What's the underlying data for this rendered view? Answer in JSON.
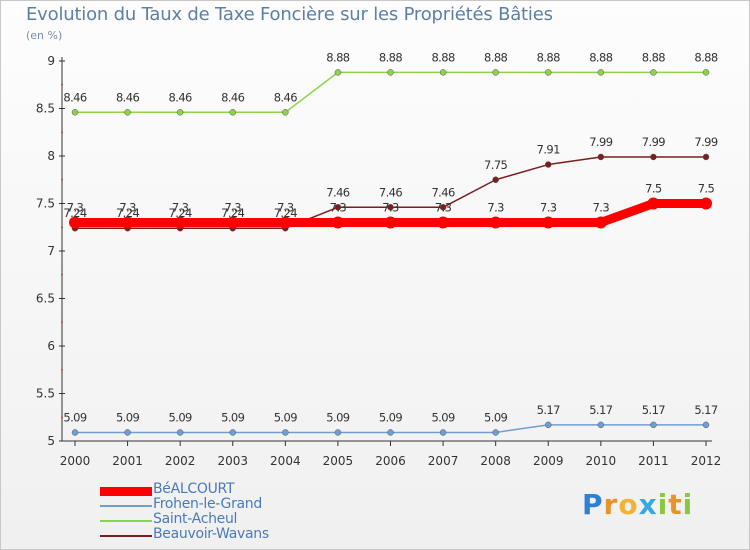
{
  "header": {
    "title": "Evolution du Taux de Taxe Foncière sur les Propriétés Bâties",
    "unit": "(en %)"
  },
  "logo": {
    "letters": [
      "P",
      "r",
      "o",
      "x",
      "i",
      "t",
      "i"
    ],
    "colors": [
      "#2f7fd6",
      "#e8922a",
      "#f2b430",
      "#3aa7e0",
      "#8cc63f",
      "#e8922a",
      "#8cc63f"
    ]
  },
  "chart_data": {
    "type": "line",
    "title": "Evolution du Taux de Taxe Foncière sur les Propriétés Bâties",
    "ylabel": "(en %)",
    "xlabel": "",
    "ylim": [
      5,
      9
    ],
    "grid": false,
    "legend_position": "bottom-left",
    "x": [
      "2000",
      "2001",
      "2002",
      "2003",
      "2004",
      "2005",
      "2006",
      "2007",
      "2008",
      "2009",
      "2010",
      "2011",
      "2012"
    ],
    "y_ticks": [
      "5",
      "5.5",
      "6",
      "6.5",
      "7",
      "7.5",
      "8",
      "8.5",
      "9"
    ],
    "series": [
      {
        "name": "BéALCOURT",
        "color": "#ff0000",
        "emphasis": true,
        "values": [
          7.3,
          7.3,
          7.3,
          7.3,
          7.3,
          7.3,
          7.3,
          7.3,
          7.3,
          7.3,
          7.3,
          7.5,
          7.5
        ],
        "labels": [
          "7.3",
          "7.3",
          "7.3",
          "7.3",
          "7.3",
          "7.3",
          "7.3",
          "7.3",
          "7.3",
          "7.3",
          "7.3",
          "7.5",
          "7.5"
        ]
      },
      {
        "name": "Frohen-le-Grand",
        "color": "#6e9fd1",
        "emphasis": false,
        "values": [
          5.09,
          5.09,
          5.09,
          5.09,
          5.09,
          5.09,
          5.09,
          5.09,
          5.09,
          5.17,
          5.17,
          5.17,
          5.17
        ],
        "labels": [
          "5.09",
          "5.09",
          "5.09",
          "5.09",
          "5.09",
          "5.09",
          "5.09",
          "5.09",
          "5.09",
          "5.17",
          "5.17",
          "5.17",
          "5.17"
        ]
      },
      {
        "name": "Saint-Acheul",
        "color": "#8ed14a",
        "emphasis": false,
        "values": [
          8.46,
          8.46,
          8.46,
          8.46,
          8.46,
          8.88,
          8.88,
          8.88,
          8.88,
          8.88,
          8.88,
          8.88,
          8.88
        ],
        "labels": [
          "8.46",
          "8.46",
          "8.46",
          "8.46",
          "8.46",
          "8.88",
          "8.88",
          "8.88",
          "8.88",
          "8.88",
          "8.88",
          "8.88",
          "8.88"
        ]
      },
      {
        "name": "Beauvoir-Wavans",
        "color": "#7a1f1f",
        "emphasis": false,
        "values": [
          7.24,
          7.24,
          7.24,
          7.24,
          7.24,
          7.46,
          7.46,
          7.46,
          7.75,
          7.91,
          7.99,
          7.99,
          7.99
        ],
        "labels": [
          "7.24",
          "7.24",
          "7.24",
          "7.24",
          "7.24",
          "7.46",
          "7.46",
          "7.46",
          "7.75",
          "7.91",
          "7.99",
          "7.99",
          "7.99"
        ]
      }
    ]
  }
}
